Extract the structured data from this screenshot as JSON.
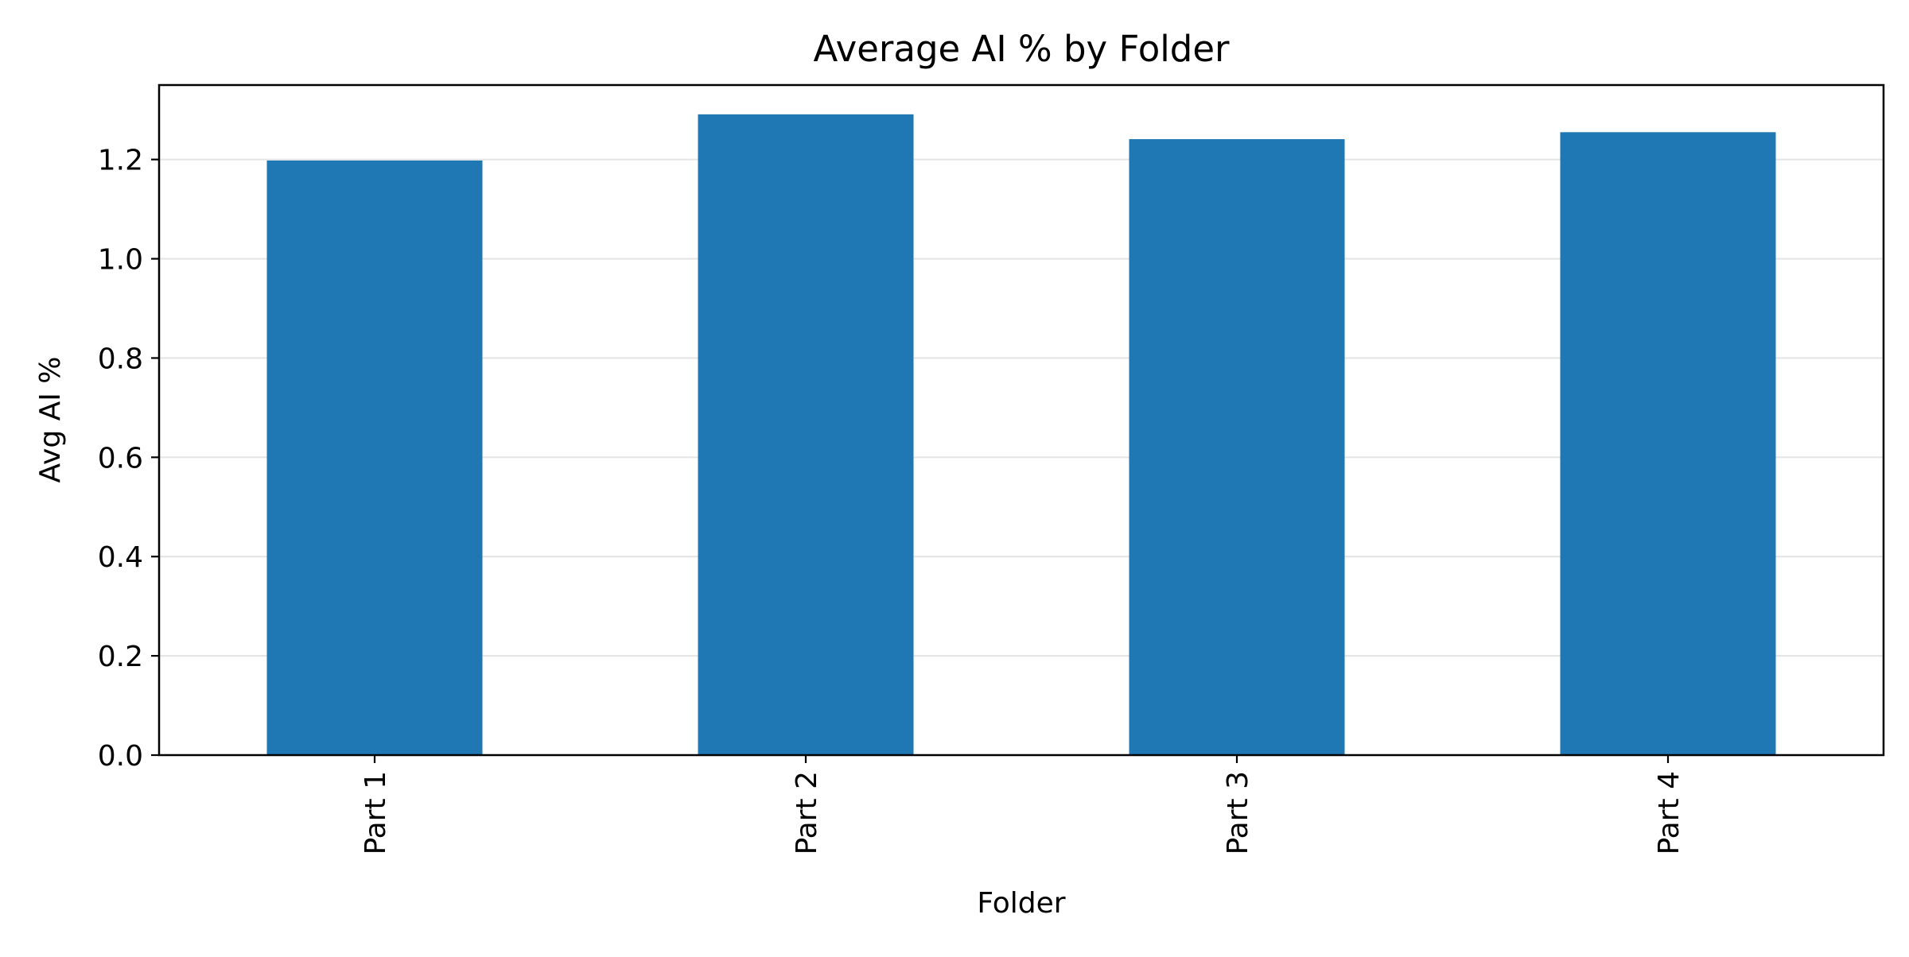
{
  "chart_data": {
    "type": "bar",
    "title": "Average AI % by Folder",
    "xlabel": "Folder",
    "ylabel": "Avg AI %",
    "categories": [
      "Part 1",
      "Part 2",
      "Part 3",
      "Part 4"
    ],
    "values": [
      1.198,
      1.291,
      1.241,
      1.255
    ],
    "ylim": [
      0,
      1.35
    ],
    "yticks": [
      0.0,
      0.2,
      0.4,
      0.6,
      0.8,
      1.0,
      1.2
    ],
    "ytick_labels": [
      "0.0",
      "0.2",
      "0.4",
      "0.6",
      "0.8",
      "1.0",
      "1.2"
    ],
    "grid": "y",
    "legend": "none",
    "bar_color": "#1f77b4",
    "grid_color": "#e5e5e5"
  }
}
